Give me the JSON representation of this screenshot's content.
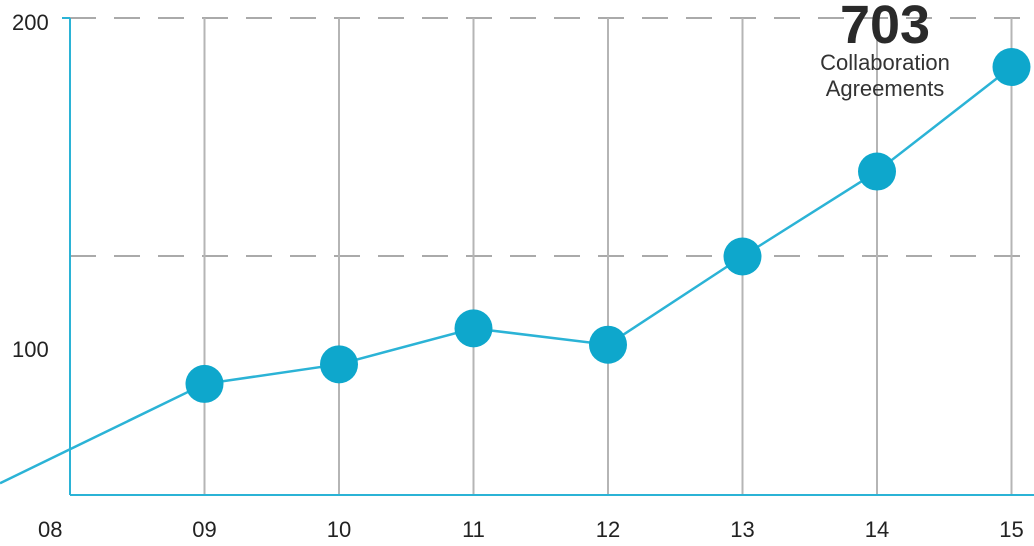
{
  "chart_data": {
    "type": "line",
    "x": [
      "08",
      "09",
      "10",
      "11",
      "12",
      "13",
      "14",
      "15"
    ],
    "values": [
      66,
      86,
      92,
      103,
      98,
      125,
      151,
      183
    ],
    "ylim": [
      52,
      198
    ],
    "yticks": [
      "200",
      "100"
    ],
    "markers_from_index": 1,
    "annotation": {
      "value": "703",
      "label_line1": "Collaboration",
      "label_line2": "Agreements"
    },
    "colors": {
      "line": "#2bb3d6",
      "marker": "#0ea7cc",
      "axis": "#2bb3d6",
      "grid_vertical": "#b5b5b5",
      "grid_dashed": "#aaaaaa"
    }
  }
}
